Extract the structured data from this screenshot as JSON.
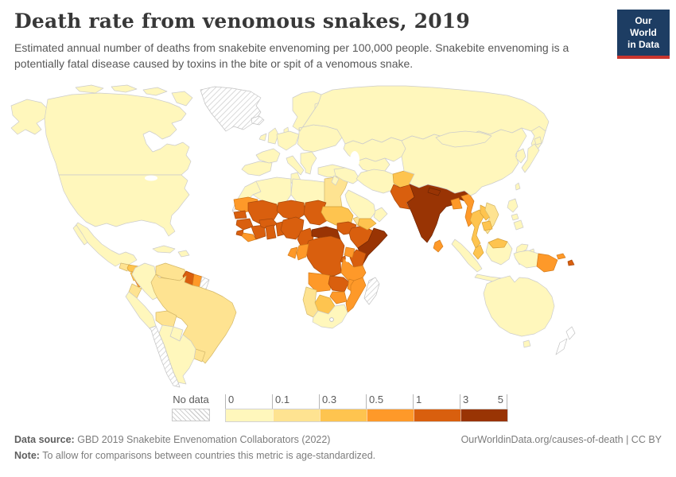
{
  "header": {
    "title": "Death rate from venomous snakes, 2019",
    "subtitle": "Estimated annual number of deaths from snakebite envenoming per 100,000 people. Snakebite envenoming is a potentially fatal disease caused by toxins in the bite or spit of a venomous snake."
  },
  "logo": {
    "line1": "Our World",
    "line2": "in Data",
    "bg_color": "#1d3d63",
    "stripe_color": "#c9352e"
  },
  "legend": {
    "no_data_label": "No data",
    "ticks": [
      "0",
      "0.1",
      "0.3",
      "0.5",
      "1",
      "3",
      "5"
    ]
  },
  "footer": {
    "datasource_label": "Data source:",
    "datasource": "GBD 2019 Snakebite Envenomation Collaborators (2022)",
    "note_label": "Note:",
    "note": "To allow for comparisons between countries this metric is age-standardized.",
    "link": "OurWorldinData.org/causes-of-death | CC BY"
  },
  "map": {
    "bin_order": [
      "b1",
      "b2",
      "b3",
      "b4",
      "b5",
      "b6"
    ],
    "palette": {
      "b1": {
        "fill": "#fff7bc",
        "stroke": "#cccccc"
      },
      "b2": {
        "fill": "#fee391",
        "stroke": "#d4b86a"
      },
      "b3": {
        "fill": "#fec44f",
        "stroke": "#d6a139"
      },
      "b4": {
        "fill": "#fe9929",
        "stroke": "#d47c1c"
      },
      "b5": {
        "fill": "#d95f0e",
        "stroke": "#a8490b"
      },
      "b6": {
        "fill": "#993404",
        "stroke": "#6f2503"
      },
      "nodata": {
        "fill": "hatch",
        "stroke": "#c2c2c2"
      },
      "outline": {
        "fill": "#ffffff",
        "stroke": "#c2c2c2"
      }
    },
    "regions": {
      "alaska": "b1",
      "canada": "b1",
      "arctic-islands-1": "b1",
      "arctic-islands-2": "b1",
      "arctic-islands-3": "b1",
      "arctic-islands-4": "b1",
      "greenland": "nodata",
      "iceland": "nodata",
      "usa": "b1",
      "mexico": "b1",
      "baja": "b1",
      "cuba": "b1",
      "hispaniola": "b1",
      "guatemala": "b2",
      "honduras": "b3",
      "nicaragua": "b3",
      "costa-rica": "b4",
      "panama": "b4",
      "colombia": "b1",
      "venezuela": "b2",
      "guyana": "b5",
      "suriname": "b4",
      "french-guiana": "nodata",
      "ecuador": "b2",
      "peru": "b1",
      "brazil": "b2",
      "bolivia": "b2",
      "paraguay": "b1",
      "uruguay": "b2",
      "argentina": "b1",
      "chile": "nodata",
      "morocco": "b1",
      "western-sahara": "nodata",
      "algeria": "b1",
      "tunisia": "b1",
      "libya": "b1",
      "egypt": "b2",
      "mauritania": "b4",
      "mali": "b5",
      "niger": "b5",
      "chad": "b5",
      "sudan": "b3",
      "eritrea": "b2",
      "djibouti": "b4",
      "senegal": "b5",
      "guinea": "b5",
      "sierra-leone": "b5",
      "liberia": "b4",
      "ivory-coast": "b5",
      "burkina-faso": "b5",
      "ghana": "b5",
      "togo-benin": "b5",
      "nigeria": "b5",
      "cameroon": "b5",
      "car": "b6",
      "south-sudan": "b5",
      "ethiopia": "b5",
      "somalia": "b6",
      "kenya": "b5",
      "uganda": "b4",
      "rwanda-burundi": "b5",
      "drc": "b5",
      "congo": "b4",
      "gabon": "b4",
      "tanzania": "b4",
      "angola": "b4",
      "zambia": "b5",
      "malawi": "b4",
      "mozambique": "b4",
      "zimbabwe": "b4",
      "botswana": "b3",
      "namibia": "b2",
      "south-africa": "b1",
      "madagascar": "nodata",
      "iberia": "b1",
      "france": "b1",
      "uk": "b1",
      "ireland": "b1",
      "scandinavia": "b1",
      "finland": "b1",
      "denmark": "b1",
      "central-europe": "b1",
      "eastern-europe": "b1",
      "italy": "b1",
      "balkans": "b1",
      "turkey": "b1",
      "russia": "b1",
      "kamchatka": "b1",
      "central-asia": "b1",
      "uzbek-turkmen": "b1",
      "iraq-syria": "b1",
      "jordan-israel": "b1",
      "iran": "b1",
      "saudi": "b1",
      "yemen": "b3",
      "oman": "b1",
      "afghanistan": "b3",
      "pakistan": "b5",
      "india": "b6",
      "nepal": "b6",
      "bangladesh": "b4",
      "sri-lanka": "b4",
      "myanmar": "b4",
      "thailand": "b3",
      "laos": "b3",
      "vietnam": "b2",
      "cambodia": "b3",
      "malaysia-peninsula": "b3",
      "china": "b1",
      "mongolia": "b1",
      "korea": "b1",
      "japan": "b1",
      "hokkaido": "b1",
      "taiwan": "b1",
      "philippines-luzon": "b1",
      "philippines-visayas": "b1",
      "philippines-mindanao": "b1",
      "sumatra": "b1",
      "java": "b1",
      "borneo": "b1",
      "borneo-malaysia": "b3",
      "sulawesi": "b1",
      "moluccas": "b1",
      "west-papua": "b1",
      "png": "b4",
      "new-britain": "b4",
      "solomon": "b5",
      "timor": "b2",
      "australia": "b1",
      "tasmania": "b1",
      "nz-north": "outline",
      "nz-south": "outline"
    }
  },
  "chart_data": {
    "type": "heatmap",
    "subtype": "choropleth-world-map",
    "title": "Death rate from venomous snakes, 2019",
    "unit": "deaths per 100,000 people (age-standardized)",
    "legend_bins": [
      {
        "range": "0-0.1",
        "color": "#fff7bc"
      },
      {
        "range": "0.1-0.3",
        "color": "#fee391"
      },
      {
        "range": "0.3-0.5",
        "color": "#fec44f"
      },
      {
        "range": "0.5-1",
        "color": "#fe9929"
      },
      {
        "range": "1-3",
        "color": "#d95f0e"
      },
      {
        "range": "3-5",
        "color": "#993404"
      }
    ],
    "no_data_label": "No data",
    "countries_by_bin": {
      "0-0.1": [
        "United States",
        "Canada",
        "Mexico",
        "Cuba",
        "Colombia",
        "Peru",
        "Paraguay",
        "Argentina",
        "Europe (most countries)",
        "Russia",
        "Turkey",
        "Iran",
        "Iraq",
        "Saudi Arabia",
        "Oman",
        "Kazakhstan",
        "Central Asia",
        "China",
        "Mongolia",
        "Japan",
        "South Korea",
        "Morocco",
        "Algeria",
        "Tunisia",
        "Libya",
        "South Africa",
        "Indonesia",
        "Philippines",
        "Australia"
      ],
      "0.1-0.3": [
        "Guatemala",
        "Venezuela",
        "Ecuador",
        "Brazil",
        "Bolivia",
        "Uruguay",
        "Egypt",
        "Eritrea",
        "Namibia",
        "Vietnam",
        "Timor-Leste"
      ],
      "0.3-0.5": [
        "Honduras",
        "Nicaragua",
        "Sudan",
        "Yemen",
        "Afghanistan",
        "Thailand",
        "Laos",
        "Cambodia",
        "Malaysia",
        "Botswana"
      ],
      "0.5-1": [
        "Costa Rica",
        "Panama",
        "Suriname",
        "Mauritania",
        "Liberia",
        "Uganda",
        "Gabon",
        "Congo",
        "Tanzania",
        "Angola",
        "Malawi",
        "Mozambique",
        "Zimbabwe",
        "Djibouti",
        "Bangladesh",
        "Sri Lanka",
        "Myanmar",
        "Papua New Guinea"
      ],
      "1-3": [
        "Guyana",
        "Senegal",
        "Guinea",
        "Sierra Leone",
        "Mali",
        "Burkina Faso",
        "Cote d'Ivoire",
        "Ghana",
        "Togo",
        "Benin",
        "Niger",
        "Nigeria",
        "Chad",
        "Cameroon",
        "South Sudan",
        "Ethiopia",
        "Kenya",
        "DR Congo",
        "Rwanda",
        "Burundi",
        "Zambia",
        "Pakistan",
        "Solomon Islands"
      ],
      "3-5": [
        "India",
        "Nepal",
        "Central African Republic",
        "Somalia"
      ],
      "no-data": [
        "Greenland",
        "Iceland",
        "Western Sahara",
        "Chile",
        "French Guiana",
        "Madagascar",
        "New Zealand"
      ]
    }
  }
}
